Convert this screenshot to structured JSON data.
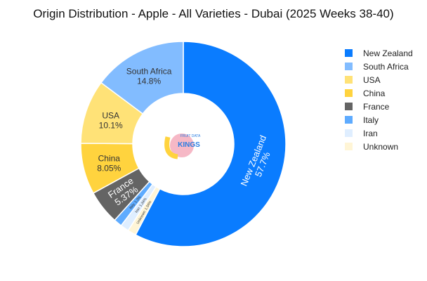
{
  "chart_data": {
    "type": "pie",
    "donut": true,
    "title": "Origin Distribution - Apple - All Varieties - Dubai (2025 Weeks 38-40)",
    "slices": [
      {
        "label": "New Zealand",
        "value": 57.7,
        "display": "57.7%",
        "color": "#0a7cff"
      },
      {
        "label": "Unknown",
        "value": 1.34,
        "display": "1.34%",
        "color": "#fff5d6"
      },
      {
        "label": "Iran",
        "value": 1.34,
        "display": "1.34%",
        "color": "#dfeeff"
      },
      {
        "label": "Italy",
        "value": 1.3,
        "display": "1.3%",
        "color": "#5eabff"
      },
      {
        "label": "France",
        "value": 5.37,
        "display": "5.37%",
        "color": "#646464"
      },
      {
        "label": "China",
        "value": 8.05,
        "display": "8.05%",
        "color": "#ffd33e"
      },
      {
        "label": "USA",
        "value": 10.1,
        "display": "10.1%",
        "color": "#ffe277"
      },
      {
        "label": "South Africa",
        "value": 14.8,
        "display": "14.8%",
        "color": "#82bcff"
      }
    ],
    "legend": {
      "position": "right",
      "order": [
        "New Zealand",
        "South Africa",
        "USA",
        "China",
        "France",
        "Italy",
        "Iran",
        "Unknown"
      ]
    }
  },
  "watermark": "FRUIT DATA KINGS"
}
